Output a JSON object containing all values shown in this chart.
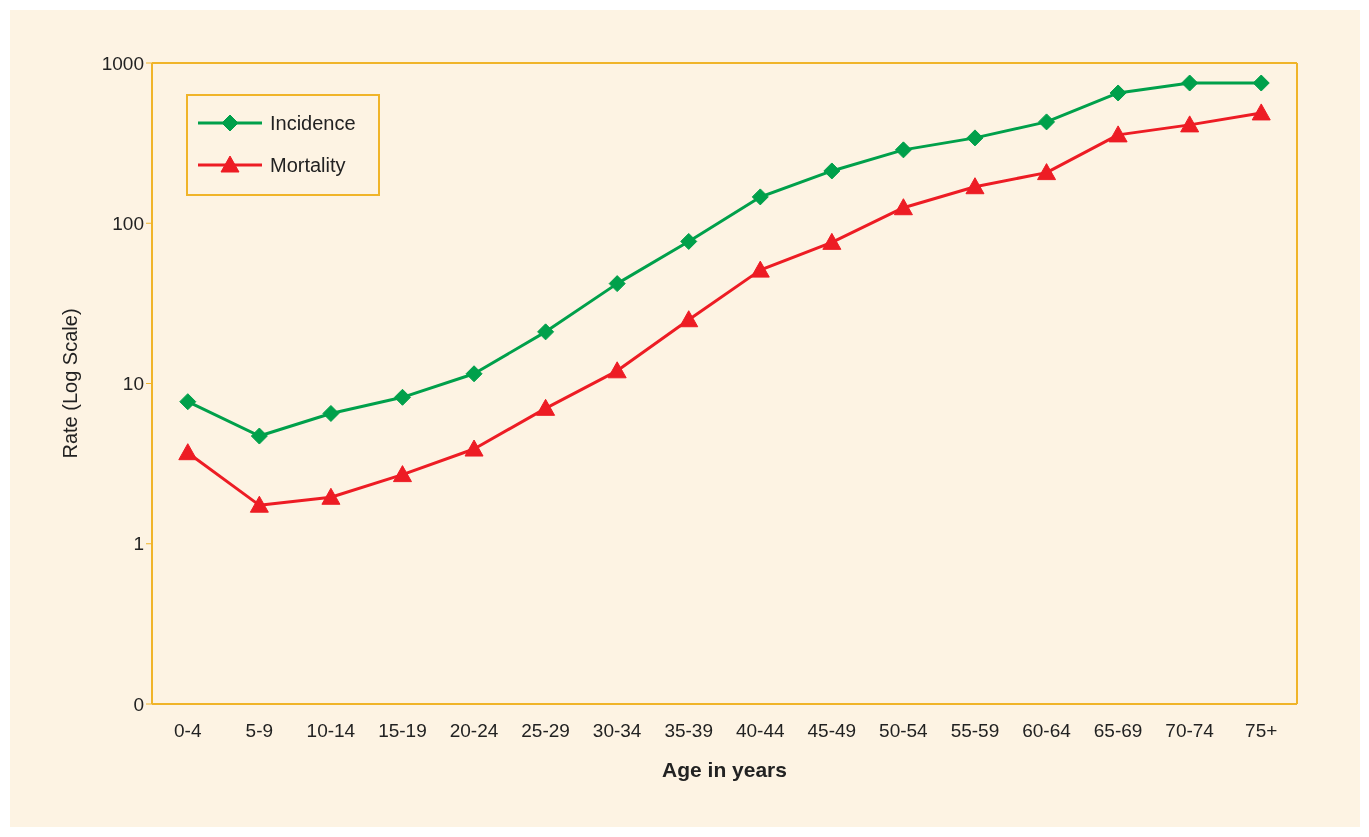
{
  "chart_data": {
    "type": "line",
    "xlabel": "Age in years",
    "ylabel": "Rate (Log Scale)",
    "categories": [
      "0-4",
      "5-9",
      "10-14",
      "15-19",
      "20-24",
      "25-29",
      "30-34",
      "35-39",
      "40-44",
      "45-49",
      "50-54",
      "55-59",
      "60-64",
      "65-69",
      "70-74",
      "75+"
    ],
    "series": [
      {
        "name": "Incidence",
        "color": "#00a04b",
        "marker": "diamond",
        "values": [
          7.7,
          4.7,
          6.5,
          8.2,
          11.5,
          21,
          42,
          77,
          146,
          212,
          287,
          341,
          429,
          650,
          750,
          750
        ]
      },
      {
        "name": "Mortality",
        "color": "#ed1c24",
        "marker": "triangle",
        "values": [
          3.7,
          1.74,
          1.95,
          2.7,
          3.9,
          7,
          12,
          25,
          51,
          76,
          125,
          169,
          207,
          356,
          411,
          488
        ]
      }
    ],
    "log": "y",
    "ylim": [
      0.1,
      1000
    ],
    "yticks": [
      {
        "value": 0.1,
        "label": "0"
      },
      1,
      10,
      100,
      1000
    ],
    "grid": false,
    "legend": "top left",
    "line_style": "solid"
  }
}
